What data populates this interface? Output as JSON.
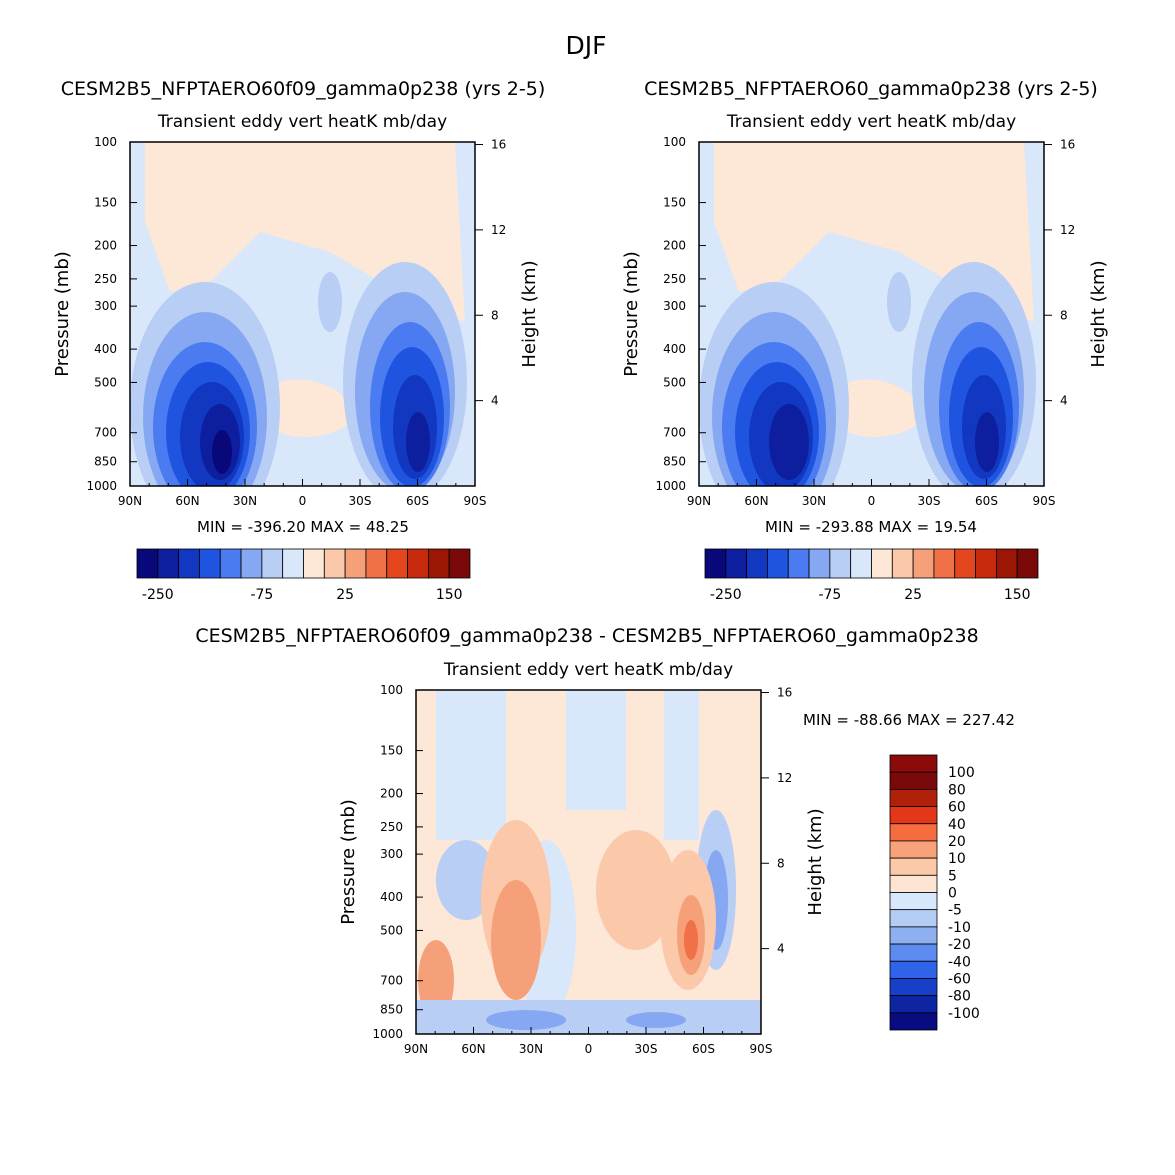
{
  "figure": {
    "title": "DJF"
  },
  "chart_data": [
    {
      "type": "heatmap",
      "name": "panel-1",
      "title": "CESM2B5_NFPTAERO60f09_gamma0p238 (yrs 2-5)",
      "subtitle": "Transient eddy vert heatK mb/day",
      "ylabel": "Pressure (mb)",
      "ylabel_right": "Height (km)",
      "x_ticks": [
        "90N",
        "60N",
        "30N",
        "0",
        "30S",
        "60S",
        "90S"
      ],
      "xlim": [
        90,
        -90
      ],
      "y_ticks": [
        "100",
        "150",
        "200",
        "250",
        "300",
        "400",
        "500",
        "700",
        "850",
        "1000"
      ],
      "ylim": [
        100,
        1000
      ],
      "height_ticks": [
        "16",
        "12",
        "8",
        "4"
      ],
      "stats": "MIN = -396.20   MAX =  48.25",
      "colorbar": {
        "orientation": "horizontal",
        "colors": [
          "#08087a",
          "#0d1f9e",
          "#1238c2",
          "#1f54e0",
          "#4a7bf0",
          "#86a8f2",
          "#b8cef5",
          "#d9e7fb",
          "#fde7d6",
          "#fbc9a9",
          "#f6a07a",
          "#f07048",
          "#e4471e",
          "#c82a0e",
          "#9c1605",
          "#7a0a0a"
        ],
        "tick_labels": [
          "-250",
          "-75",
          "25",
          "150"
        ]
      }
    },
    {
      "type": "heatmap",
      "name": "panel-2",
      "title": "CESM2B5_NFPTAERO60_gamma0p238 (yrs 2-5)",
      "subtitle": "Transient eddy vert heatK mb/day",
      "ylabel": "Pressure (mb)",
      "ylabel_right": "Height (km)",
      "x_ticks": [
        "90N",
        "60N",
        "30N",
        "0",
        "30S",
        "60S",
        "90S"
      ],
      "xlim": [
        90,
        -90
      ],
      "y_ticks": [
        "100",
        "150",
        "200",
        "250",
        "300",
        "400",
        "500",
        "700",
        "850",
        "1000"
      ],
      "ylim": [
        100,
        1000
      ],
      "height_ticks": [
        "16",
        "12",
        "8",
        "4"
      ],
      "stats": "MIN = -293.88   MAX =  19.54",
      "colorbar": {
        "orientation": "horizontal",
        "colors": [
          "#08087a",
          "#0d1f9e",
          "#1238c2",
          "#1f54e0",
          "#4a7bf0",
          "#86a8f2",
          "#b8cef5",
          "#d9e7fb",
          "#fde7d6",
          "#fbc9a9",
          "#f6a07a",
          "#f07048",
          "#e4471e",
          "#c82a0e",
          "#9c1605",
          "#7a0a0a"
        ],
        "tick_labels": [
          "-250",
          "-75",
          "25",
          "150"
        ]
      }
    },
    {
      "type": "heatmap",
      "name": "panel-diff",
      "title": "CESM2B5_NFPTAERO60f09_gamma0p238 - CESM2B5_NFPTAERO60_gamma0p238",
      "subtitle": "Transient eddy vert heatK mb/day",
      "ylabel": "Pressure (mb)",
      "ylabel_right": "Height (km)",
      "x_ticks": [
        "90N",
        "60N",
        "30N",
        "0",
        "30S",
        "60S",
        "90S"
      ],
      "xlim": [
        90,
        -90
      ],
      "y_ticks": [
        "100",
        "150",
        "200",
        "250",
        "300",
        "400",
        "500",
        "700",
        "850",
        "1000"
      ],
      "ylim": [
        100,
        1000
      ],
      "height_ticks": [
        "16",
        "12",
        "8",
        "4"
      ],
      "stats": "MIN = -88.66   MAX = 227.42",
      "colorbar": {
        "orientation": "vertical",
        "colors": [
          "#7a0a0a",
          "#b0200b",
          "#e4371a",
          "#f56d3f",
          "#f9a27a",
          "#fbc8a8",
          "#fde4d3",
          "#d8e7fb",
          "#b3cdf5",
          "#8fb0f0",
          "#5e8bf0",
          "#2f63e8",
          "#1640c9",
          "#0d25a0",
          "#080c80"
        ],
        "tick_labels": [
          "100",
          "80",
          "60",
          "40",
          "20",
          "10",
          "5",
          "0",
          "-5",
          "-10",
          "-20",
          "-40",
          "-60",
          "-80",
          "-100"
        ]
      }
    }
  ]
}
